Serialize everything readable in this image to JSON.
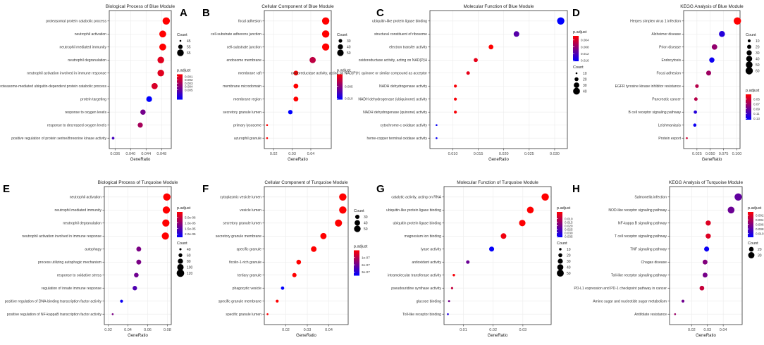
{
  "colors": {
    "high": "#ff0000",
    "low": "#0000ff",
    "frame": "#333333",
    "grid": "#ebebeb",
    "text": "#1a1a1a"
  },
  "x_axis_title": "GeneRatio",
  "count_title": "Count",
  "padjust_title": "p.adjust",
  "chart_data": [
    {
      "type": "scatter",
      "panel_letter": "A",
      "title": "Biological Process of Blue Module",
      "xlabel": "GeneRatio",
      "xlim": [
        0.0345,
        0.0505
      ],
      "x_ticks": [
        0.036,
        0.04,
        0.044,
        0.048
      ],
      "x_tick_labels": [
        "0.036",
        "0.040",
        "0.044",
        "0.048"
      ],
      "categories": [
        "proteasomal protein catabolic process",
        "neutrophil activation",
        "neutrophil mediated immunity",
        "neutrophil degranulation",
        "neutrophil activation involved in immune response",
        "proteasome-mediated ubiquitin-dependent protein catabolic process",
        "protein targeting",
        "response to oxygen levels",
        "response to decreased oxygen levels",
        "positive regulation of protein serine/threonine kinase activity"
      ],
      "gene_ratio": [
        0.0492,
        0.0483,
        0.0483,
        0.0478,
        0.0478,
        0.0462,
        0.0448,
        0.0432,
        0.0425,
        0.0355
      ],
      "count": [
        68,
        66,
        66,
        65,
        65,
        63,
        61,
        59,
        58,
        48
      ],
      "p_adjust": [
        0.0003,
        0.0002,
        0.0002,
        0.0012,
        0.0012,
        0.0015,
        0.008,
        0.0045,
        0.003,
        0.006
      ],
      "count_legend": {
        "values": [
          45,
          55,
          65
        ],
        "labels": [
          "45",
          "55",
          "65"
        ],
        "range": [
          45,
          68
        ]
      },
      "padjust_legend": {
        "labels": [
          "0.001",
          "0.002",
          "0.003",
          "0.004",
          "0.005"
        ],
        "range": [
          0.0003,
          0.008
        ],
        "tick_values": [
          0.001,
          0.002,
          0.003,
          0.004,
          0.005
        ]
      },
      "legend_order": "count-first"
    },
    {
      "type": "scatter",
      "panel_letter": "B",
      "title": "Cellular Component of Blue Module",
      "xlabel": "GeneRatio",
      "xlim": [
        0.015,
        0.051
      ],
      "x_ticks": [
        0.02,
        0.03,
        0.04
      ],
      "x_tick_labels": [
        "0.02",
        "0.03",
        "0.04"
      ],
      "categories": [
        "focal adhesion",
        "cell-substrate adherens junction",
        "cell-substrate junction",
        "endosome membrane",
        "membrane raft",
        "membrane microdomain",
        "membrane region",
        "secretory granule lumen",
        "primary lysosome",
        "azurophil granule"
      ],
      "gene_ratio": [
        0.048,
        0.048,
        0.048,
        0.041,
        0.032,
        0.032,
        0.032,
        0.029,
        0.0165,
        0.0165
      ],
      "count": [
        57,
        57,
        56,
        48,
        38,
        38,
        38,
        35,
        20,
        20
      ],
      "p_adjust": [
        0.0001,
        0.0001,
        0.0001,
        0.0028,
        0.0001,
        0.0001,
        0.0001,
        0.0105,
        0.0001,
        0.0001
      ],
      "count_legend": {
        "values": [
          30,
          40,
          50
        ],
        "labels": [
          "30",
          "40",
          "50"
        ],
        "range": [
          20,
          57
        ]
      },
      "padjust_legend": {
        "labels": [
          "0.005",
          "0.010"
        ],
        "range": [
          0.0001,
          0.0105
        ],
        "tick_values": [
          0.005,
          0.01
        ]
      },
      "legend_order": "count-first"
    },
    {
      "type": "scatter",
      "panel_letter": "C",
      "title": "Molecular Function of Blue Module",
      "xlabel": "GeneRatio",
      "xlim": [
        0.0055,
        0.0325
      ],
      "x_ticks": [
        0.01,
        0.015,
        0.02,
        0.025,
        0.03
      ],
      "x_tick_labels": [
        "0.010",
        "0.015",
        "0.020",
        "0.025",
        "0.030"
      ],
      "categories": [
        "ubiquitin-like protein ligase binding",
        "structural constituent of ribosome",
        "electron transfer activity",
        "oxidoreductase activity, acting on NAD(P)H",
        "oxidoreductase activity, acting on NAD(P)H, quinone or similar compound as acceptor",
        "NADH dehydrogenase activity",
        "NADH dehydrogenase (ubiquinone) activity",
        "NADH dehydrogenase (quinone) activity",
        "cytochrome-c oxidase activity",
        "heme-copper terminal oxidase activity"
      ],
      "gene_ratio": [
        0.0312,
        0.0225,
        0.0175,
        0.0145,
        0.013,
        0.0105,
        0.0105,
        0.0105,
        0.0068,
        0.0068
      ],
      "count": [
        44,
        31,
        25,
        21,
        18,
        15,
        15,
        15,
        10,
        10
      ],
      "p_adjust": [
        0.0165,
        0.0115,
        0.0016,
        0.003,
        0.003,
        0.002,
        0.002,
        0.002,
        0.016,
        0.016
      ],
      "count_legend": {
        "values": [
          10,
          20,
          30,
          40
        ],
        "labels": [
          "10",
          "20",
          "30",
          "40"
        ],
        "range": [
          10,
          44
        ]
      },
      "padjust_legend": {
        "labels": [
          "0.004",
          "0.008",
          "0.012",
          "0.016"
        ],
        "range": [
          0.0016,
          0.0165
        ],
        "tick_values": [
          0.004,
          0.008,
          0.012,
          0.016
        ]
      },
      "legend_order": "padjust-first"
    },
    {
      "type": "scatter",
      "panel_letter": "D",
      "title": "KEGG Analysis of Blue Module",
      "xlabel": "GeneRatio",
      "xlim": [
        0.0,
        0.106
      ],
      "x_ticks": [
        0.025,
        0.05,
        0.075,
        0.1
      ],
      "x_tick_labels": [
        "0.025",
        "0.050",
        "0.075",
        "0.100"
      ],
      "categories": [
        "Herpes simplex virus 1 infection",
        "Alzheimer disease",
        "Prion disease",
        "Endocytosis",
        "Focal adhesion",
        "EGFR tyrosine kinase inhibitor resistance",
        "Pancreatic cancer",
        "B cell receptor signaling pathway",
        "Leishmaniasis",
        "Protein export"
      ],
      "gene_ratio": [
        0.101,
        0.072,
        0.058,
        0.053,
        0.047,
        0.025,
        0.023,
        0.022,
        0.021,
        0.006
      ],
      "count": [
        60,
        40,
        34,
        31,
        28,
        15,
        14,
        13,
        12,
        4
      ],
      "p_adjust": [
        0.03,
        0.12,
        0.075,
        0.13,
        0.07,
        0.06,
        0.06,
        0.12,
        0.13,
        0.05
      ],
      "count_legend": {
        "values": [
          10,
          20,
          30,
          40,
          50,
          60
        ],
        "labels": [
          "10",
          "20",
          "30",
          "40",
          "50",
          "60"
        ],
        "range": [
          4,
          60
        ]
      },
      "padjust_legend": {
        "labels": [
          "0.05",
          "0.07",
          "0.09",
          "0.11",
          "0.13"
        ],
        "range": [
          0.03,
          0.135
        ],
        "tick_values": [
          0.05,
          0.07,
          0.09,
          0.11,
          0.13
        ]
      },
      "legend_order": "count-first"
    },
    {
      "type": "scatter",
      "panel_letter": "E",
      "title": "Biological Process of Turquoise Module",
      "xlabel": "GeneRatio",
      "xlim": [
        0.016,
        0.084
      ],
      "x_ticks": [
        0.02,
        0.04,
        0.06,
        0.08
      ],
      "x_tick_labels": [
        "0.02",
        "0.04",
        "0.06",
        "0.08"
      ],
      "categories": [
        "neutrophil activation",
        "neutrophil mediated immunity",
        "neutrophil degranulation",
        "neutrophil activation involved in immune response",
        "autophagy",
        "process utilizing autophagic mechanism",
        "response to oxidative stress",
        "regulation of innate immune response",
        "positive regulation of DNA-binding transcription factor activity",
        "positive regulation of NF-kappaB transcription factor activity"
      ],
      "gene_ratio": [
        0.0795,
        0.079,
        0.0785,
        0.078,
        0.051,
        0.051,
        0.0485,
        0.047,
        0.0335,
        0.0245
      ],
      "count": [
        117,
        116,
        115,
        114,
        75,
        75,
        71,
        69,
        49,
        36
      ],
      "p_adjust": [
        0.0,
        0.0,
        0.0,
        0.0,
        1.2e-05,
        1.2e-05,
        1.3e-05,
        1.6e-05,
        2.2e-05,
        1.2e-05
      ],
      "count_legend": {
        "values": [
          40,
          60,
          80,
          100,
          120
        ],
        "labels": [
          "40",
          "60",
          "80",
          "100",
          "120"
        ],
        "range": [
          36,
          117
        ]
      },
      "padjust_legend": {
        "labels": [
          "5.0e-06",
          "1.0e-05",
          "1.5e-05",
          "2.0e-05"
        ],
        "range": [
          0.0,
          2.3e-05
        ],
        "tick_values": [
          5e-06,
          1e-05,
          1.5e-05,
          2e-05
        ]
      },
      "legend_order": "padjust-first"
    },
    {
      "type": "scatter",
      "panel_letter": "F",
      "title": "Cellular Component of Turquoise Module",
      "xlabel": "GeneRatio",
      "xlim": [
        0.01,
        0.049
      ],
      "x_ticks": [
        0.02,
        0.03,
        0.04
      ],
      "x_tick_labels": [
        "0.02",
        "0.03",
        "0.04"
      ],
      "categories": [
        "cytoplasmic vesicle lumen",
        "vesicle lumen",
        "secretory granule lumen",
        "secretory granule membrane",
        "specific granule",
        "ficolin-1-rich granule",
        "tertiary granule",
        "phagocytic vesicle",
        "specific granule membrane",
        "specific granule lumen"
      ],
      "gene_ratio": [
        0.0465,
        0.0465,
        0.0445,
        0.0375,
        0.033,
        0.026,
        0.024,
        0.0185,
        0.016,
        0.0115
      ],
      "count": [
        58,
        58,
        56,
        47,
        41,
        33,
        30,
        23,
        20,
        14
      ],
      "p_adjust": [
        0.0,
        0.0,
        0.0,
        0.0,
        0.0,
        0.0,
        0.0,
        3.5e-07,
        0.0,
        0.0
      ],
      "count_legend": {
        "values": [
          30,
          40,
          50
        ],
        "labels": [
          "30",
          "40",
          "50"
        ],
        "range": [
          14,
          58
        ]
      },
      "padjust_legend": {
        "labels": [
          "1e-07",
          "2e-07",
          "3e-07"
        ],
        "range": [
          0.0,
          3.5e-07
        ],
        "tick_values": [
          1e-07,
          2e-07,
          3e-07
        ]
      },
      "legend_order": "count-first"
    },
    {
      "type": "scatter",
      "panel_letter": "G",
      "title": "Molecular Function of Turquoise Module",
      "xlabel": "GeneRatio",
      "xlim": [
        0.0035,
        0.0395
      ],
      "x_ticks": [
        0.01,
        0.02,
        0.03
      ],
      "x_tick_labels": [
        "0.01",
        "0.02",
        "0.03"
      ],
      "categories": [
        "catalytic activity, acting on RNA",
        "ubiquitin-like protein ligase binding",
        "ubiquitin protein ligase binding",
        "magnesium ion binding",
        "lyase activity",
        "antioxidant activity",
        "intramolecular transferase activity",
        "pseudouridine synthase activity",
        "glucose binding",
        "Toll-like receptor binding"
      ],
      "gene_ratio": [
        0.0375,
        0.0325,
        0.0298,
        0.0235,
        0.0195,
        0.0115,
        0.0068,
        0.0062,
        0.0052,
        0.0048
      ],
      "count": [
        55,
        48,
        44,
        35,
        29,
        17,
        10,
        9,
        8,
        7
      ],
      "p_adjust": [
        0.0005,
        0.0006,
        0.0008,
        0.0025,
        0.036,
        0.0215,
        0.0015,
        0.009,
        0.02,
        0.032
      ],
      "count_legend": {
        "values": [
          10,
          20,
          30,
          40,
          50
        ],
        "labels": [
          "10",
          "20",
          "30",
          "40",
          "50"
        ],
        "range": [
          7,
          55
        ]
      },
      "padjust_legend": {
        "labels": [
          "0.010",
          "0.015",
          "0.020",
          "0.025",
          "0.030",
          "0.035"
        ],
        "range": [
          0.0005,
          0.0365
        ],
        "tick_values": [
          0.01,
          0.015,
          0.02,
          0.025,
          0.03,
          0.035
        ]
      },
      "legend_order": "padjust-first"
    },
    {
      "type": "scatter",
      "panel_letter": "H",
      "title": "KEGG Analysis of Turquoise Module",
      "xlabel": "GeneRatio",
      "xlim": [
        0.006,
        0.052
      ],
      "x_ticks": [
        0.02,
        0.03,
        0.04
      ],
      "x_tick_labels": [
        "0.02",
        "0.03",
        "0.04"
      ],
      "categories": [
        "Salmonella infection",
        "NOD-like receptor signaling pathway",
        "NF-kappa B signaling pathway",
        "T cell receptor signaling pathway",
        "TNF signaling pathway",
        "Chagas disease",
        "Toll-like receptor signaling pathway",
        "PD-L1 expression and PD-1 checkpoint pathway in cancer",
        "Amino sugar and nucleotide sugar metabolism",
        "Antifolate resistance"
      ],
      "gene_ratio": [
        0.0495,
        0.045,
        0.0305,
        0.0305,
        0.0295,
        0.0285,
        0.0285,
        0.0265,
        0.0145,
        0.0095
      ],
      "count": [
        38,
        34,
        23,
        23,
        22,
        21,
        21,
        20,
        11,
        7
      ],
      "p_adjust": [
        0.0075,
        0.007,
        0.002,
        0.002,
        0.0112,
        0.006,
        0.0065,
        0.003,
        0.0068,
        0.005
      ],
      "count_legend": {
        "values": [
          20,
          30
        ],
        "labels": [
          "20",
          "30"
        ],
        "range": [
          7,
          38
        ]
      },
      "padjust_legend": {
        "labels": [
          "0.002",
          "0.004",
          "0.006",
          "0.008",
          "0.010"
        ],
        "range": [
          0.0005,
          0.0117
        ],
        "tick_values": [
          0.002,
          0.004,
          0.006,
          0.008,
          0.01
        ]
      },
      "legend_order": "padjust-first"
    }
  ]
}
